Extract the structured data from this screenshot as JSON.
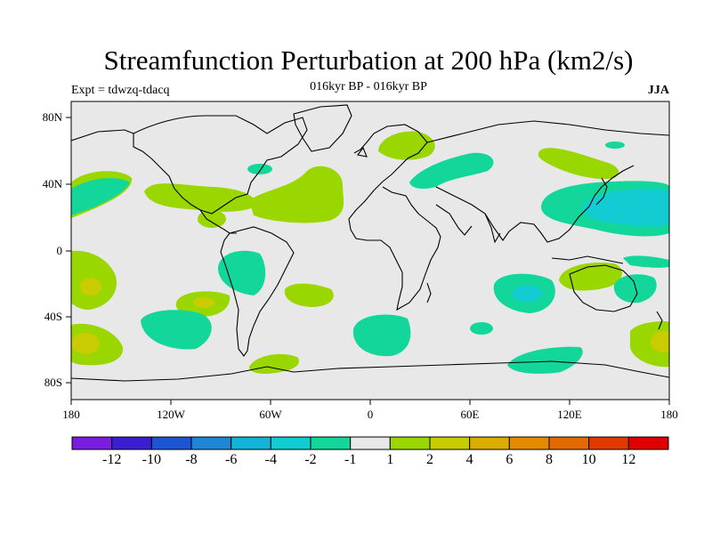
{
  "title": "Streamfunction Perturbation at 200 hPa (km2/s)",
  "subtitle": "016kyr BP - 016kyr BP",
  "experiment_label": "Expt = tdwzq-tdacq",
  "season": "JJA",
  "map": {
    "projection": "cylindrical-equidistant",
    "background_color": "#e8e8e8",
    "coastline_color": "#000000",
    "lat_labels": [
      "80N",
      "40N",
      "0",
      "40S",
      "80S"
    ],
    "lon_labels": [
      "180",
      "120W",
      "60W",
      "0",
      "60E",
      "120E",
      "180"
    ]
  },
  "colorbar": {
    "colors": [
      "#7a1de0",
      "#3a1ed0",
      "#1b55d1",
      "#1f86d6",
      "#12b4d7",
      "#12ccd4",
      "#12d69a",
      "#e8e8e8",
      "#9ad600",
      "#c9cc00",
      "#dcac00",
      "#e38a00",
      "#e26a00",
      "#e03a00",
      "#e00000"
    ],
    "labels": [
      "-12",
      "-10",
      "-8",
      "-6",
      "-4",
      "-2",
      "-1",
      "1",
      "2",
      "4",
      "6",
      "8",
      "10",
      "12"
    ]
  },
  "contour_regions": [
    {
      "name": "positive-north-pacific-east",
      "level": "2",
      "color": "#9ad600"
    },
    {
      "name": "negative-west-north-pacific",
      "level": "-1",
      "color": "#12d69a"
    },
    {
      "name": "negative-hudson-bay",
      "level": "-1",
      "color": "#12d69a"
    },
    {
      "name": "positive-north-america",
      "level": "2",
      "color": "#9ad600"
    },
    {
      "name": "positive-north-atlantic",
      "level": "2",
      "color": "#9ad600"
    },
    {
      "name": "positive-scandinavia",
      "level": "2",
      "color": "#9ad600"
    },
    {
      "name": "negative-eurasia",
      "level": "-1",
      "color": "#12d69a"
    },
    {
      "name": "positive-north-pacific-west",
      "level": "2",
      "color": "#9ad600"
    },
    {
      "name": "negative-japan",
      "level": "-2",
      "color": "#12ccd4"
    },
    {
      "name": "negative-siberia-small",
      "level": "-1",
      "color": "#12d69a"
    },
    {
      "name": "positive-central-america",
      "level": "2",
      "color": "#9ad600"
    },
    {
      "name": "negative-south-america",
      "level": "-1",
      "color": "#12d69a"
    },
    {
      "name": "positive-southeast-pacific",
      "level": "4",
      "color": "#c9cc00"
    },
    {
      "name": "negative-south-pacific",
      "level": "-1",
      "color": "#12d69a"
    },
    {
      "name": "positive-south-atlantic",
      "level": "2",
      "color": "#9ad600"
    },
    {
      "name": "negative-southern-atlantic",
      "level": "-1",
      "color": "#12d69a"
    },
    {
      "name": "negative-south-indian",
      "level": "-2",
      "color": "#12ccd4"
    },
    {
      "name": "positive-australia",
      "level": "2",
      "color": "#9ad600"
    },
    {
      "name": "negative-southwest-pacific",
      "level": "-1",
      "color": "#12d69a"
    },
    {
      "name": "positive-south-pacific-west",
      "level": "4",
      "color": "#c9cc00"
    },
    {
      "name": "positive-dateline-south",
      "level": "4",
      "color": "#c9cc00"
    },
    {
      "name": "positive-drake-passage",
      "level": "2",
      "color": "#9ad600"
    },
    {
      "name": "negative-southern-ocean",
      "level": "-1",
      "color": "#12d69a"
    }
  ]
}
